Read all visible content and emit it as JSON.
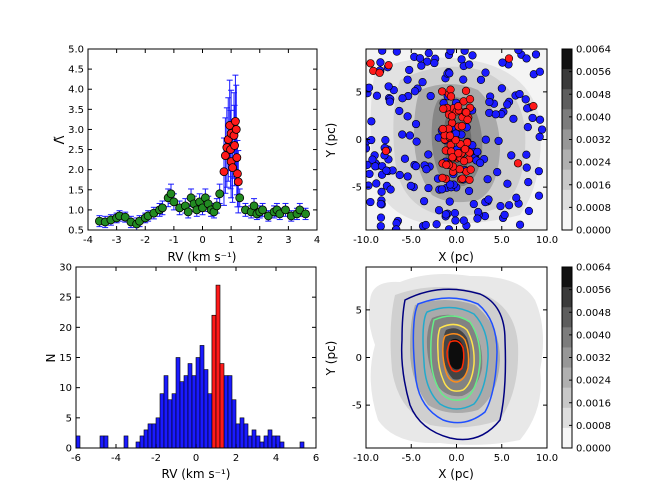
{
  "chart_data": [
    {
      "type": "scatter",
      "panel": "top-left",
      "xlabel": "RV  (km s⁻¹)",
      "ylabel": "Λ̃",
      "xlim": [
        -4,
        4
      ],
      "ylim": [
        0.5,
        5.0
      ],
      "xticks": [
        -4,
        -3,
        -2,
        -1,
        0,
        1,
        2,
        3,
        4
      ],
      "yticks": [
        "0.5",
        "1.0",
        "1.5",
        "2.0",
        "2.5",
        "3.0",
        "3.5",
        "4.0",
        "4.5",
        "5.0"
      ],
      "series": [
        {
          "name": "green",
          "color": "#228B22",
          "points": [
            [
              -3.6,
              0.72
            ],
            [
              -3.4,
              0.7
            ],
            [
              -3.2,
              0.75
            ],
            [
              -3.0,
              0.8
            ],
            [
              -2.9,
              0.85
            ],
            [
              -2.7,
              0.82
            ],
            [
              -2.5,
              0.7
            ],
            [
              -2.3,
              0.65
            ],
            [
              -2.2,
              0.72
            ],
            [
              -2.0,
              0.8
            ],
            [
              -1.9,
              0.85
            ],
            [
              -1.7,
              0.92
            ],
            [
              -1.5,
              1.0
            ],
            [
              -1.4,
              1.05
            ],
            [
              -1.2,
              1.3
            ],
            [
              -1.1,
              1.4
            ],
            [
              -1.0,
              1.2
            ],
            [
              -0.8,
              1.05
            ],
            [
              -0.6,
              1.1
            ],
            [
              -0.5,
              0.95
            ],
            [
              -0.4,
              1.3
            ],
            [
              -0.3,
              1.15
            ],
            [
              -0.2,
              1.0
            ],
            [
              -0.1,
              1.2
            ],
            [
              0.0,
              1.05
            ],
            [
              0.1,
              1.3
            ],
            [
              0.2,
              1.15
            ],
            [
              0.3,
              1.0
            ],
            [
              0.4,
              0.95
            ],
            [
              0.5,
              1.1
            ],
            [
              0.6,
              1.4
            ],
            [
              1.3,
              1.3
            ],
            [
              1.5,
              1.0
            ],
            [
              1.7,
              0.95
            ],
            [
              1.8,
              1.1
            ],
            [
              1.9,
              0.9
            ],
            [
              2.0,
              0.95
            ],
            [
              2.1,
              1.0
            ],
            [
              2.3,
              0.85
            ],
            [
              2.5,
              0.95
            ],
            [
              2.6,
              1.0
            ],
            [
              2.7,
              0.9
            ],
            [
              2.9,
              1.0
            ],
            [
              3.1,
              0.85
            ],
            [
              3.3,
              0.9
            ],
            [
              3.4,
              1.0
            ],
            [
              3.6,
              0.9
            ]
          ]
        },
        {
          "name": "red",
          "color": "#ff1a1a",
          "points": [
            [
              0.75,
              1.95
            ],
            [
              0.8,
              2.35
            ],
            [
              0.85,
              2.55
            ],
            [
              0.9,
              2.75
            ],
            [
              0.95,
              3.1
            ],
            [
              1.0,
              2.9
            ],
            [
              0.98,
              2.5
            ],
            [
              1.0,
              2.2
            ],
            [
              1.05,
              2.05
            ],
            [
              1.1,
              2.85
            ],
            [
              1.12,
              2.6
            ],
            [
              1.15,
              3.2
            ],
            [
              1.18,
              3.0
            ],
            [
              1.2,
              2.3
            ],
            [
              1.22,
              1.9
            ],
            [
              1.25,
              1.7
            ]
          ]
        }
      ]
    },
    {
      "type": "scatter",
      "panel": "top-right",
      "xlabel": "X (pc)",
      "ylabel": "Y (pc)",
      "xlim": [
        -10,
        10
      ],
      "ylim": [
        -9.5,
        9.5
      ],
      "xticks": [
        "-10.0",
        "-5.0",
        "0.0",
        "5.0",
        "10.0"
      ],
      "yticks": [
        -5,
        0,
        5
      ],
      "series": [
        {
          "name": "blue stars",
          "color": "#1a1aff"
        },
        {
          "name": "red stars",
          "color": "#ff1a1a"
        }
      ]
    },
    {
      "type": "bar",
      "panel": "bottom-left",
      "xlabel": "RV  (km s⁻¹)",
      "ylabel": "N",
      "xlim": [
        -6,
        6
      ],
      "ylim": [
        0,
        30
      ],
      "xticks": [
        -6,
        -4,
        -2,
        0,
        2,
        4,
        6
      ],
      "yticks": [
        0,
        5,
        10,
        15,
        20,
        25,
        30
      ],
      "bin_width": 0.2,
      "series": [
        {
          "name": "blue",
          "color": "#1a1aff",
          "bins": [
            [
              -6.0,
              2
            ],
            [
              -4.8,
              2
            ],
            [
              -4.6,
              2
            ],
            [
              -3.6,
              2
            ],
            [
              -3.0,
              1
            ],
            [
              -2.8,
              2
            ],
            [
              -2.6,
              3
            ],
            [
              -2.4,
              4
            ],
            [
              -2.2,
              4
            ],
            [
              -2.0,
              5
            ],
            [
              -1.8,
              9
            ],
            [
              -1.6,
              12
            ],
            [
              -1.4,
              8
            ],
            [
              -1.2,
              9
            ],
            [
              -1.0,
              15
            ],
            [
              -0.8,
              11
            ],
            [
              -0.6,
              12
            ],
            [
              -0.4,
              14
            ],
            [
              -0.2,
              12
            ],
            [
              0.0,
              15
            ],
            [
              0.2,
              17
            ],
            [
              0.4,
              13
            ],
            [
              0.6,
              9
            ],
            [
              0.8,
              22
            ],
            [
              1.0,
              14
            ],
            [
              1.4,
              12
            ],
            [
              1.6,
              12
            ],
            [
              1.8,
              8
            ],
            [
              2.0,
              4
            ],
            [
              2.2,
              5
            ],
            [
              2.4,
              4
            ],
            [
              2.6,
              2
            ],
            [
              2.8,
              3
            ],
            [
              3.0,
              2
            ],
            [
              3.2,
              1
            ],
            [
              3.4,
              2
            ],
            [
              3.6,
              3
            ],
            [
              3.8,
              2
            ],
            [
              4.0,
              2
            ],
            [
              4.2,
              1
            ],
            [
              5.2,
              1
            ]
          ]
        },
        {
          "name": "red",
          "color": "#ff1a1a",
          "bins": [
            [
              0.8,
              22
            ],
            [
              1.0,
              27
            ],
            [
              1.2,
              14
            ]
          ]
        }
      ]
    },
    {
      "type": "heatmap",
      "panel": "bottom-right",
      "xlabel": "X (pc)",
      "ylabel": "Y (pc)",
      "xlim": [
        -10,
        10
      ],
      "ylim": [
        -9.5,
        9.5
      ],
      "xticks": [
        "-10.0",
        "-5.0",
        "0.0",
        "5.0",
        "10.0"
      ],
      "yticks": [
        -5,
        0,
        5
      ],
      "contour_colors": [
        "#000080",
        "#1f4fff",
        "#22aacc",
        "#66ee88",
        "#ffe44d",
        "#ff8c1a",
        "#ff2a00"
      ]
    }
  ],
  "colorbars": {
    "ticks": [
      "0.0064",
      "0.0056",
      "0.0048",
      "0.0040",
      "0.0032",
      "0.0024",
      "0.0016",
      "0.0008",
      "0.0000"
    ],
    "levels": [
      "#111111",
      "#3a3a3a",
      "#5d5d5d",
      "#7c7c7c",
      "#979797",
      "#b0b0b0",
      "#c8c8c8",
      "#dedede",
      "#f7f7f7"
    ]
  }
}
